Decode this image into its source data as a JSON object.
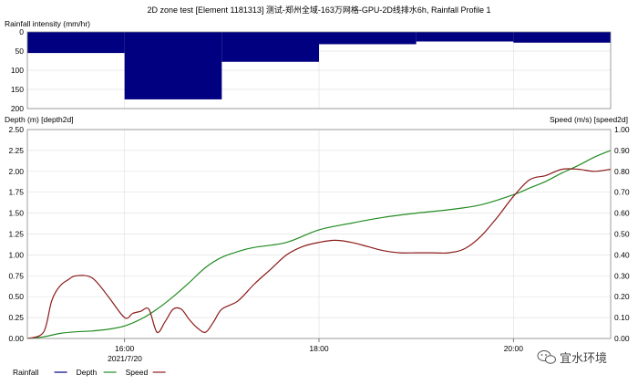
{
  "title": "2D zone test [Element 1181313] 测试-郑州全域-163万网格-GPU-2D线排水6h, Rainfall Profile 1",
  "watermark": "宜水环境",
  "legend": [
    {
      "label": "Rainfall",
      "color": "#000080"
    },
    {
      "label": "Depth",
      "color": "#228B22"
    },
    {
      "label": "Speed",
      "color": "#8B1A1A"
    }
  ],
  "chart_data": [
    {
      "type": "bar",
      "ylabel": "Rainfall intensity (mm/hr)",
      "ylim": [
        0,
        200
      ],
      "y_inverted": true,
      "y_ticks": [
        "0",
        "50",
        "100",
        "150",
        "200"
      ],
      "color": "#000080",
      "series": [
        {
          "name": "Rainfall",
          "steps": [
            {
              "start": "15:00",
              "end": "16:00",
              "value": 55
            },
            {
              "start": "16:00",
              "end": "17:00",
              "value": 176
            },
            {
              "start": "17:00",
              "end": "18:00",
              "value": 78
            },
            {
              "start": "18:00",
              "end": "19:00",
              "value": 32
            },
            {
              "start": "19:00",
              "end": "20:00",
              "value": 25
            },
            {
              "start": "20:00",
              "end": "21:00",
              "value": 28
            }
          ]
        }
      ]
    },
    {
      "type": "line",
      "ylabel": "Depth (m) [depth2d]",
      "y2label": "Speed (m/s) [speed2d]",
      "xlim": [
        "15:00",
        "21:00"
      ],
      "ylim": [
        0,
        2.5
      ],
      "y2lim": [
        0,
        1.0
      ],
      "x_ticks": [
        "16:00",
        "18:00",
        "20:00"
      ],
      "date_label": "2021/7/20",
      "y_ticks": [
        "0.00",
        "0.25",
        "0.50",
        "0.75",
        "1.00",
        "1.25",
        "1.50",
        "1.75",
        "2.00",
        "2.25",
        "2.50"
      ],
      "y2_ticks": [
        "0.00",
        "0.10",
        "0.20",
        "0.30",
        "0.40",
        "0.50",
        "0.60",
        "0.70",
        "0.80",
        "0.90",
        "1.00"
      ],
      "series": [
        {
          "name": "Depth",
          "axis": "left",
          "color": "#228B22",
          "x": [
            "15:00",
            "15:10",
            "15:20",
            "15:30",
            "15:40",
            "15:50",
            "16:00",
            "16:10",
            "16:20",
            "16:30",
            "16:40",
            "16:50",
            "17:00",
            "17:10",
            "17:20",
            "17:40",
            "18:00",
            "18:20",
            "18:40",
            "19:00",
            "19:20",
            "19:40",
            "20:00",
            "20:10",
            "20:20",
            "20:30",
            "20:40",
            "20:50",
            "21:00"
          ],
          "y": [
            0.0,
            0.02,
            0.06,
            0.08,
            0.09,
            0.11,
            0.15,
            0.23,
            0.35,
            0.5,
            0.67,
            0.85,
            0.97,
            1.04,
            1.09,
            1.15,
            1.3,
            1.38,
            1.45,
            1.5,
            1.54,
            1.6,
            1.72,
            1.8,
            1.88,
            1.98,
            2.07,
            2.17,
            2.25
          ]
        },
        {
          "name": "Speed",
          "axis": "right",
          "color": "#8B1A1A",
          "x": [
            "15:00",
            "15:10",
            "15:15",
            "15:20",
            "15:25",
            "15:30",
            "15:40",
            "15:50",
            "16:00",
            "16:05",
            "16:10",
            "16:15",
            "16:20",
            "16:25",
            "16:30",
            "16:35",
            "16:40",
            "16:45",
            "16:50",
            "16:55",
            "17:00",
            "17:10",
            "17:20",
            "17:30",
            "17:40",
            "17:50",
            "18:00",
            "18:10",
            "18:20",
            "18:30",
            "18:40",
            "18:50",
            "19:00",
            "19:10",
            "19:20",
            "19:30",
            "19:40",
            "19:50",
            "20:00",
            "20:10",
            "20:20",
            "20:30",
            "20:40",
            "20:50",
            "21:00"
          ],
          "y": [
            0.0,
            0.03,
            0.18,
            0.25,
            0.28,
            0.3,
            0.29,
            0.2,
            0.1,
            0.12,
            0.13,
            0.14,
            0.03,
            0.08,
            0.14,
            0.14,
            0.09,
            0.05,
            0.03,
            0.08,
            0.14,
            0.18,
            0.26,
            0.33,
            0.4,
            0.44,
            0.46,
            0.47,
            0.46,
            0.44,
            0.42,
            0.41,
            0.41,
            0.41,
            0.41,
            0.43,
            0.49,
            0.58,
            0.68,
            0.76,
            0.78,
            0.81,
            0.81,
            0.8,
            0.81
          ]
        }
      ]
    }
  ]
}
